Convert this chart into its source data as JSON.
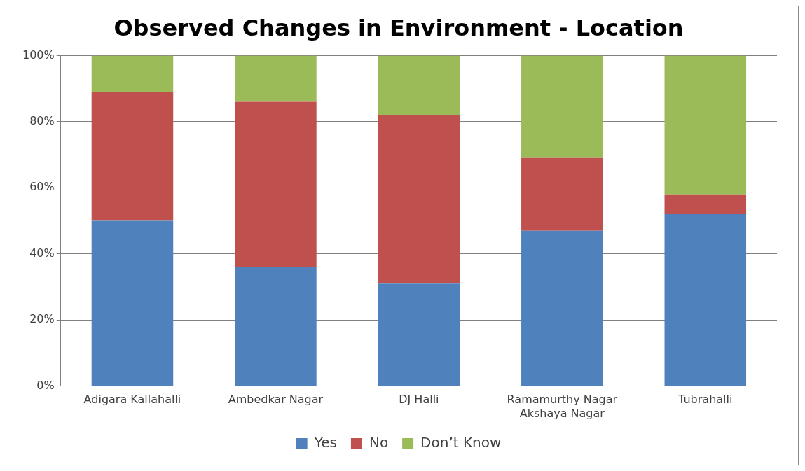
{
  "chart_data": {
    "type": "bar",
    "title": "Observed Changes in Environment - Location",
    "categories": [
      "Adigara Kallahalli",
      "Ambedkar Nagar",
      "DJ Halli",
      "Ramamurthy Nagar Akshaya Nagar",
      "Tubrahalli"
    ],
    "stacked": true,
    "series": [
      {
        "name": "Yes",
        "color": "#4f81bd",
        "values": [
          50,
          36,
          31,
          47,
          52
        ]
      },
      {
        "name": "No",
        "color": "#c0504d",
        "values": [
          39,
          50,
          51,
          22,
          6
        ]
      },
      {
        "name": "Don’t Know",
        "color": "#9bbb59",
        "values": [
          11,
          14,
          18,
          31,
          42
        ]
      }
    ],
    "ylim": [
      0,
      100
    ],
    "yticks": [
      {
        "value": 0,
        "label": "0%"
      },
      {
        "value": 20,
        "label": "20%"
      },
      {
        "value": 40,
        "label": "40%"
      },
      {
        "value": 60,
        "label": "60%"
      },
      {
        "value": 80,
        "label": "80%"
      },
      {
        "value": 100,
        "label": "100%"
      }
    ],
    "grid": "y",
    "legend": "bottom"
  }
}
